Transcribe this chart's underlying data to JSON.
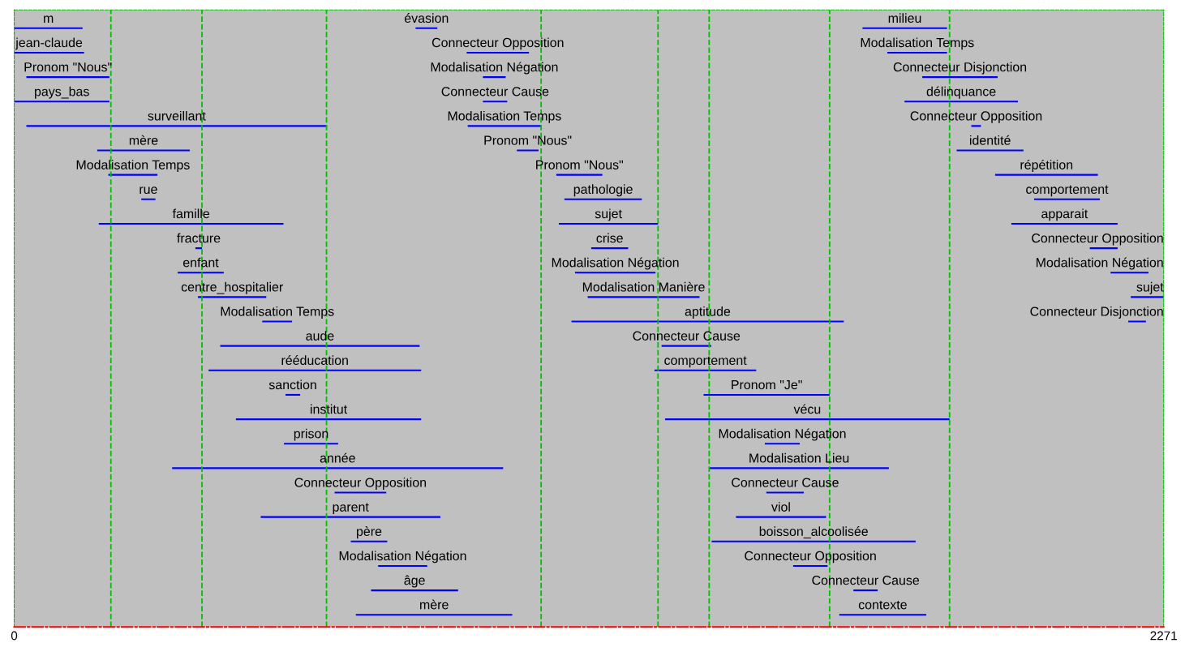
{
  "chart_data": {
    "type": "bar",
    "orientation": "horizontal",
    "categories": [
      null,
      null,
      null,
      null,
      null,
      null,
      null,
      null,
      null,
      null,
      null,
      null,
      null,
      null,
      null,
      null,
      null,
      null,
      null,
      null,
      null,
      null,
      null,
      null,
      null
    ],
    "xlim": [
      0,
      2271
    ],
    "xticks": [
      0,
      2271
    ],
    "tick_labels": "x",
    "grid": false,
    "ref_lines": [
      {
        "axis": "x",
        "value": 191,
        "color": "#00c000",
        "line_style": "dashed"
      },
      {
        "axis": "x",
        "value": 371,
        "color": "#00c000",
        "line_style": "dashed"
      },
      {
        "axis": "x",
        "value": 617,
        "color": "#00c000",
        "line_style": "dashed"
      },
      {
        "axis": "x",
        "value": 1041,
        "color": "#00c000",
        "line_style": "dashed"
      },
      {
        "axis": "x",
        "value": 1272,
        "color": "#00c000",
        "line_style": "dashed"
      },
      {
        "axis": "x",
        "value": 1373,
        "color": "#00c000",
        "line_style": "dashed"
      },
      {
        "axis": "x",
        "value": 1611,
        "color": "#00c000",
        "line_style": "dashed"
      },
      {
        "axis": "x",
        "value": 1848,
        "color": "#00c000",
        "line_style": "dashed"
      }
    ],
    "series": [
      {
        "color": "#0000ff",
        "base": [
          0,
          0,
          24,
          0,
          24,
          164,
          186,
          251,
          167,
          358,
          323,
          363,
          490,
          407,
          384,
          536,
          438,
          533,
          312,
          633,
          487,
          665,
          719,
          705,
          675
        ],
        "values": [
          135,
          138,
          164,
          188,
          594,
          183,
          97,
          28,
          365,
          13,
          91,
          135,
          59,
          394,
          420,
          29,
          366,
          107,
          654,
          102,
          355,
          72,
          97,
          172,
          309
        ],
        "value_labels": [
          "m",
          "jean-claude",
          "Pronom \"Nous\"",
          "pays_bas",
          "surveillant",
          "mère",
          "Modalisation Temps",
          "rue",
          "famille",
          "fracture",
          "enfant",
          "centre_hospitalier",
          "Modalisation Temps",
          "aude",
          "rééducation",
          "sanction",
          "institut",
          "prison",
          "année",
          "Connecteur Opposition",
          "parent",
          "père",
          "Modalisation Négation",
          "âge",
          "mère"
        ]
      },
      {
        "color": "#0000ff",
        "base": [
          793,
          894,
          926,
          926,
          896,
          993,
          1071,
          1087,
          1076,
          1140,
          1108,
          1133,
          1101,
          1279,
          1265,
          1362,
          1286,
          1483,
          1373,
          1486,
          1426,
          1378,
          1539,
          1658,
          1630
        ],
        "values": [
          43,
          123,
          45,
          48,
          145,
          43,
          91,
          153,
          196,
          73,
          159,
          221,
          538,
          98,
          201,
          249,
          562,
          69,
          355,
          74,
          178,
          403,
          68,
          48,
          172
        ],
        "value_labels": [
          "évasion",
          "Connecteur Opposition",
          "Modalisation Négation",
          "Connecteur Cause",
          "Modalisation Temps",
          "Pronom \"Nous\"",
          "Pronom \"Nous\"",
          "pathologie",
          "sujet",
          "crise",
          "Modalisation Négation",
          "Modalisation Manière",
          "aptitude",
          "Connecteur Cause",
          "comportement",
          "Pronom \"Je\"",
          "vécu",
          "Modalisation Négation",
          "Modalisation Lieu",
          "Connecteur Cause",
          "viol",
          "boisson_alcoolisée",
          "Connecteur Opposition",
          "Connecteur Cause",
          "contexte"
        ]
      },
      {
        "color": "#0000ff",
        "base": [
          1676,
          1725,
          1794,
          1759,
          1891,
          1862,
          1938,
          2015,
          1970,
          2125,
          2166,
          2206,
          2201,
          null,
          null,
          null,
          null,
          null,
          null,
          null,
          null,
          null,
          null,
          null,
          null
        ],
        "values": [
          167,
          118,
          149,
          224,
          19,
          132,
          203,
          130,
          210,
          55,
          75,
          65,
          35,
          null,
          null,
          null,
          null,
          null,
          null,
          null,
          null,
          null,
          null,
          null,
          null
        ],
        "value_labels": [
          "milieu",
          "Modalisation Temps",
          "Connecteur Disjonction",
          "délinquance",
          "Connecteur Opposition",
          "identité",
          "répétition",
          "comportement",
          "apparait",
          "Connecteur Opposition",
          "Modalisation Négation",
          "sujet",
          "Connecteur Disjonction",
          null,
          null,
          null,
          null,
          null,
          null,
          null,
          null,
          null,
          null,
          null,
          null
        ]
      }
    ]
  }
}
